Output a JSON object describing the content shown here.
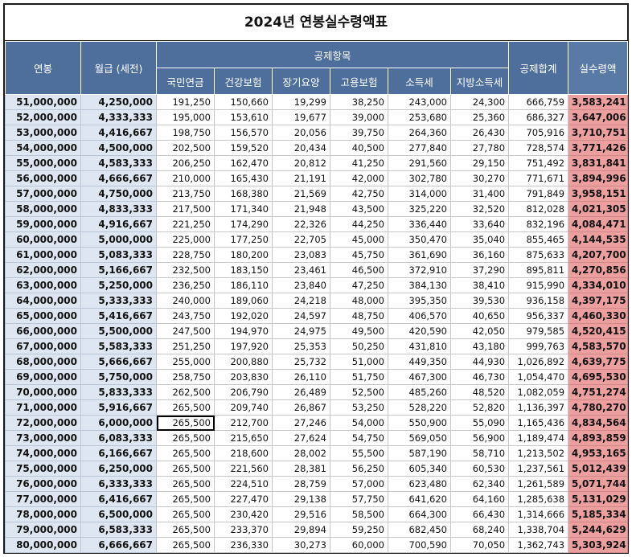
{
  "title": "2024년 연봉실수령액표",
  "headers": {
    "salary": "연봉",
    "monthly": "월급 (세전)",
    "deductions_group": "공제항목",
    "pension": "국민연금",
    "health": "건강보험",
    "longterm": "장기요양",
    "employment": "고용보험",
    "income_tax": "소득세",
    "local_tax": "지방소득세",
    "total": "공제합계",
    "net": "실수령액"
  },
  "selected_cell": {
    "row": 21,
    "col": "pension"
  },
  "colors": {
    "header_bg": "#4e6f9c",
    "salary_bg": "#dde6f1",
    "net_bg": "#ec9f9f"
  },
  "rows": [
    [
      "51,000,000",
      "4,250,000",
      "191,250",
      "150,660",
      "19,299",
      "38,250",
      "243,000",
      "24,300",
      "666,759",
      "3,583,241"
    ],
    [
      "52,000,000",
      "4,333,333",
      "195,000",
      "153,610",
      "19,677",
      "39,000",
      "253,680",
      "25,360",
      "686,327",
      "3,647,006"
    ],
    [
      "53,000,000",
      "4,416,667",
      "198,750",
      "156,570",
      "20,056",
      "39,750",
      "264,360",
      "26,430",
      "705,916",
      "3,710,751"
    ],
    [
      "54,000,000",
      "4,500,000",
      "202,500",
      "159,520",
      "20,434",
      "40,500",
      "277,840",
      "27,780",
      "728,574",
      "3,771,426"
    ],
    [
      "55,000,000",
      "4,583,333",
      "206,250",
      "162,470",
      "20,812",
      "41,250",
      "291,560",
      "29,150",
      "751,492",
      "3,831,841"
    ],
    [
      "56,000,000",
      "4,666,667",
      "210,000",
      "165,430",
      "21,191",
      "42,000",
      "302,780",
      "30,270",
      "771,671",
      "3,894,996"
    ],
    [
      "57,000,000",
      "4,750,000",
      "213,750",
      "168,380",
      "21,569",
      "42,750",
      "314,000",
      "31,400",
      "791,849",
      "3,958,151"
    ],
    [
      "58,000,000",
      "4,833,333",
      "217,500",
      "171,340",
      "21,948",
      "43,500",
      "325,220",
      "32,520",
      "812,028",
      "4,021,305"
    ],
    [
      "59,000,000",
      "4,916,667",
      "221,250",
      "174,290",
      "22,326",
      "44,250",
      "336,440",
      "33,640",
      "832,196",
      "4,084,471"
    ],
    [
      "60,000,000",
      "5,000,000",
      "225,000",
      "177,250",
      "22,705",
      "45,000",
      "350,470",
      "35,040",
      "855,465",
      "4,144,535"
    ],
    [
      "61,000,000",
      "5,083,333",
      "228,750",
      "180,200",
      "23,083",
      "45,750",
      "361,690",
      "36,160",
      "875,633",
      "4,207,700"
    ],
    [
      "62,000,000",
      "5,166,667",
      "232,500",
      "183,150",
      "23,461",
      "46,500",
      "372,910",
      "37,290",
      "895,811",
      "4,270,856"
    ],
    [
      "63,000,000",
      "5,250,000",
      "236,250",
      "186,110",
      "23,840",
      "47,250",
      "384,130",
      "38,410",
      "915,990",
      "4,334,010"
    ],
    [
      "64,000,000",
      "5,333,333",
      "240,000",
      "189,060",
      "24,218",
      "48,000",
      "395,350",
      "39,530",
      "936,158",
      "4,397,175"
    ],
    [
      "65,000,000",
      "5,416,667",
      "243,750",
      "192,020",
      "24,597",
      "48,750",
      "406,570",
      "40,650",
      "956,337",
      "4,460,330"
    ],
    [
      "66,000,000",
      "5,500,000",
      "247,500",
      "194,970",
      "24,975",
      "49,500",
      "420,590",
      "42,050",
      "979,585",
      "4,520,415"
    ],
    [
      "67,000,000",
      "5,583,333",
      "251,250",
      "197,920",
      "25,353",
      "50,250",
      "431,810",
      "43,180",
      "999,763",
      "4,583,570"
    ],
    [
      "68,000,000",
      "5,666,667",
      "255,000",
      "200,880",
      "25,732",
      "51,000",
      "449,350",
      "44,930",
      "1,026,892",
      "4,639,775"
    ],
    [
      "69,000,000",
      "5,750,000",
      "258,750",
      "203,830",
      "26,110",
      "51,750",
      "467,300",
      "46,730",
      "1,054,470",
      "4,695,530"
    ],
    [
      "70,000,000",
      "5,833,333",
      "262,500",
      "206,790",
      "26,489",
      "52,500",
      "485,260",
      "48,520",
      "1,082,059",
      "4,751,274"
    ],
    [
      "71,000,000",
      "5,916,667",
      "265,500",
      "209,740",
      "26,867",
      "53,250",
      "528,220",
      "52,820",
      "1,136,397",
      "4,780,270"
    ],
    [
      "72,000,000",
      "6,000,000",
      "265,500",
      "212,700",
      "27,246",
      "54,000",
      "550,900",
      "55,090",
      "1,165,436",
      "4,834,564"
    ],
    [
      "73,000,000",
      "6,083,333",
      "265,500",
      "215,650",
      "27,624",
      "54,750",
      "569,050",
      "56,900",
      "1,189,474",
      "4,893,859"
    ],
    [
      "74,000,000",
      "6,166,667",
      "265,500",
      "218,600",
      "28,002",
      "55,500",
      "587,190",
      "58,710",
      "1,213,502",
      "4,953,165"
    ],
    [
      "75,000,000",
      "6,250,000",
      "265,500",
      "221,560",
      "28,381",
      "56,250",
      "605,340",
      "60,530",
      "1,237,561",
      "5,012,439"
    ],
    [
      "76,000,000",
      "6,333,333",
      "265,500",
      "224,510",
      "28,759",
      "57,000",
      "623,480",
      "62,340",
      "1,261,589",
      "5,071,744"
    ],
    [
      "77,000,000",
      "6,416,667",
      "265,500",
      "227,470",
      "29,138",
      "57,750",
      "641,620",
      "64,160",
      "1,285,638",
      "5,131,029"
    ],
    [
      "78,000,000",
      "6,500,000",
      "265,500",
      "230,420",
      "29,516",
      "58,500",
      "664,300",
      "66,430",
      "1,314,666",
      "5,185,334"
    ],
    [
      "79,000,000",
      "6,583,333",
      "265,500",
      "233,370",
      "29,894",
      "59,250",
      "682,450",
      "68,240",
      "1,338,704",
      "5,244,629"
    ],
    [
      "80,000,000",
      "6,666,667",
      "265,500",
      "236,330",
      "30,273",
      "60,000",
      "700,590",
      "70,050",
      "1,362,743",
      "5,303,924"
    ]
  ]
}
